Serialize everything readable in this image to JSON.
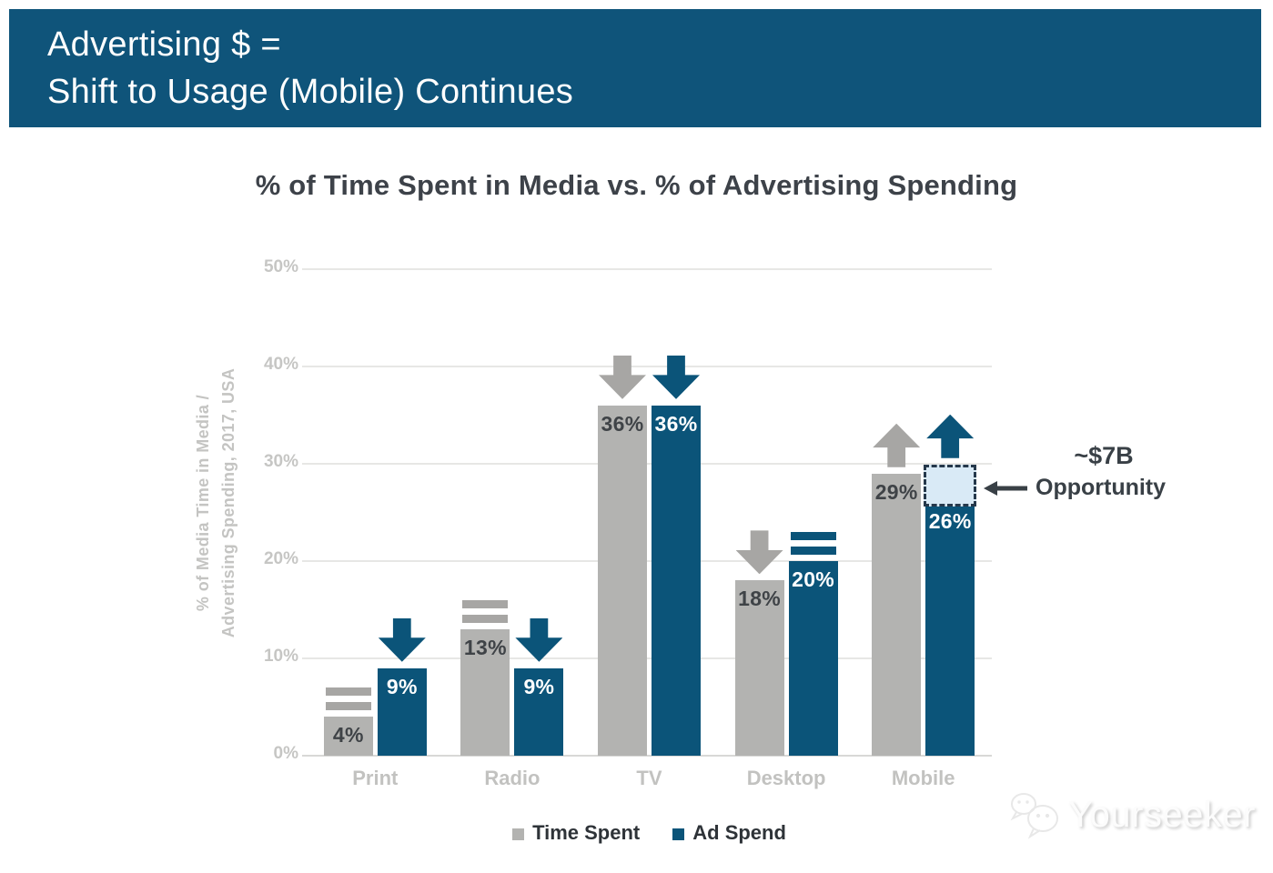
{
  "header": {
    "line1": "Advertising $ =",
    "line2": "Shift to Usage (Mobile) Continues"
  },
  "chart_data": {
    "type": "bar",
    "title": "% of Time Spent in Media vs. % of Advertising Spending",
    "ylabel_lines": [
      "% of Media Time in Media /",
      "Advertising Spending, 2017, USA"
    ],
    "categories": [
      "Print",
      "Radio",
      "TV",
      "Desktop",
      "Mobile"
    ],
    "series": [
      {
        "name": "Time Spent",
        "color": "#b3b3b1",
        "label_color": "#3f4347",
        "icon_color": "#a7a6a4",
        "values": [
          4,
          13,
          36,
          18,
          29
        ],
        "labels": [
          "4%",
          "13%",
          "36%",
          "18%",
          "29%"
        ],
        "trends": [
          "equal",
          "equal",
          "down",
          "down",
          "up"
        ]
      },
      {
        "name": "Ad Spend",
        "color": "#0b5479",
        "label_color": "#ffffff",
        "icon_color": "#0b5479",
        "values": [
          9,
          9,
          36,
          20,
          26
        ],
        "labels": [
          "9%",
          "9%",
          "36%",
          "20%",
          "26%"
        ],
        "trends": [
          "down",
          "down",
          "down",
          "equal",
          "up"
        ]
      }
    ],
    "ylim": [
      0,
      50
    ],
    "ytick_values": [
      0,
      10,
      20,
      30,
      40,
      50
    ],
    "yticks": [
      "0%",
      "10%",
      "20%",
      "30%",
      "40%",
      "50%"
    ],
    "grid": true,
    "legend_position": "bottom",
    "annotation": {
      "line1": "~$7B",
      "line2": "Opportunity",
      "target_category": "Mobile",
      "target_series": "Ad Spend",
      "box_fill": "#d9eaf6",
      "box_border": "#25384b"
    }
  },
  "watermark": {
    "text": "Yourseeker",
    "icon": "wechat-chat-bubbles-icon"
  },
  "colors": {
    "banner_bg": "#0f547a",
    "banner_text": "#ffffff",
    "title_text": "#3d4249",
    "axis_text": "#c6c6c4",
    "category_text": "#c2c2c0",
    "grid_line": "#e7e7e5",
    "baseline": "#d8d8d6",
    "legend_text": "#2e3338",
    "annotation_text": "#394046"
  }
}
